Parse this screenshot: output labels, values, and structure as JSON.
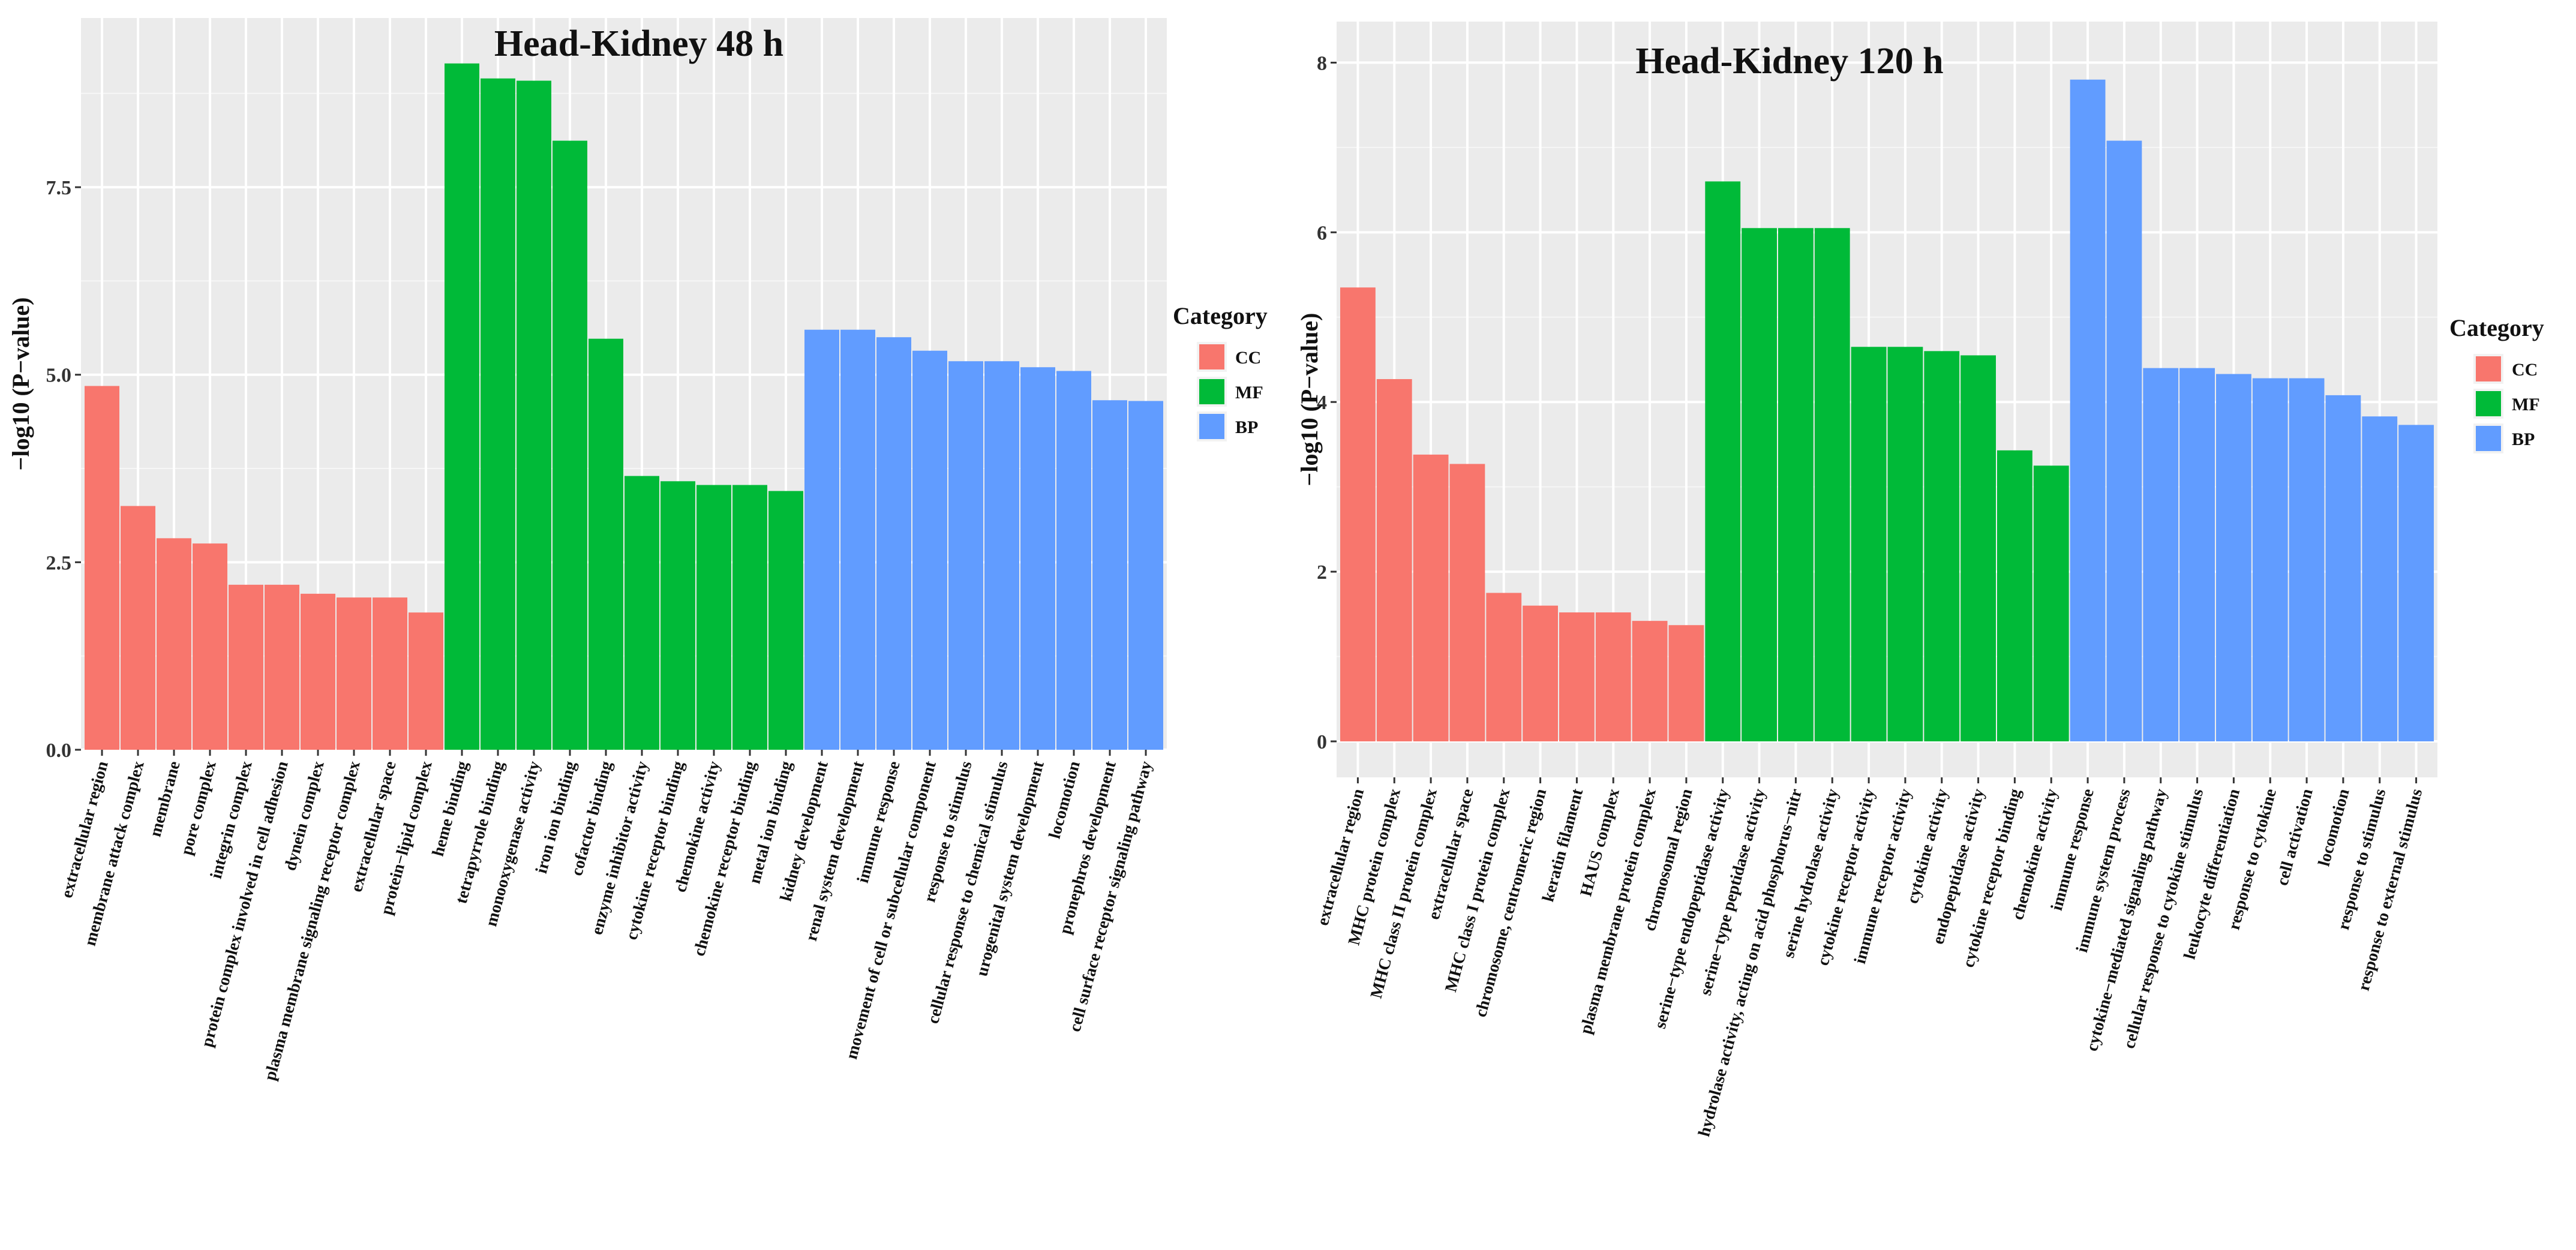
{
  "chart_data": [
    {
      "type": "bar",
      "title": "Head-Kidney 48 h",
      "ylabel": "−log10 (P−value)",
      "ylim": [
        0,
        9.5
      ],
      "yticks": [
        "0.0",
        "2.5",
        "5.0",
        "7.5"
      ],
      "grid": true,
      "legend": {
        "title": "Category",
        "placement": "right",
        "entries": [
          {
            "name": "CC",
            "color": "#F8766D"
          },
          {
            "name": "MF",
            "color": "#00BA38"
          },
          {
            "name": "BP",
            "color": "#619CFF"
          }
        ]
      },
      "categories": [
        "extracellular region",
        "membrane attack complex",
        "membrane",
        "pore complex",
        "integrin complex",
        "protein complex involved in cell adhesion",
        "dynein complex",
        "plasma membrane signaling receptor complex",
        "extracellular space",
        "protein−lipid complex",
        "heme binding",
        "tetrapyrrole binding",
        "monooxygenase activity",
        "iron ion binding",
        "cofactor binding",
        "enzyme inhibitor activity",
        "cytokine receptor binding",
        "chemokine activity",
        "chemokine receptor binding",
        "metal ion binding",
        "kidney development",
        "renal system development",
        "immune response",
        "movement of cell or subcellular component",
        "response to stimulus",
        "cellular response to chemical stimulus",
        "urogenital system development",
        "locomotion",
        "pronephros development",
        "cell surface receptor signaling pathway"
      ],
      "values": [
        4.85,
        3.25,
        2.82,
        2.75,
        2.2,
        2.2,
        2.08,
        2.03,
        2.03,
        1.83,
        9.15,
        8.95,
        8.92,
        8.12,
        5.48,
        3.65,
        3.58,
        3.53,
        3.53,
        3.45,
        5.6,
        5.6,
        5.5,
        5.32,
        5.18,
        5.18,
        5.1,
        5.05,
        4.66,
        4.65
      ],
      "groups": [
        "CC",
        "CC",
        "CC",
        "CC",
        "CC",
        "CC",
        "CC",
        "CC",
        "CC",
        "CC",
        "MF",
        "MF",
        "MF",
        "MF",
        "MF",
        "MF",
        "MF",
        "MF",
        "MF",
        "MF",
        "BP",
        "BP",
        "BP",
        "BP",
        "BP",
        "BP",
        "BP",
        "BP",
        "BP",
        "BP"
      ]
    },
    {
      "type": "bar",
      "title": "Head-Kidney 120 h",
      "ylabel": "−log10 (P−value)",
      "ylim": [
        0,
        8.3
      ],
      "yticks": [
        "0",
        "2",
        "4",
        "6",
        "8"
      ],
      "grid": true,
      "legend": {
        "title": "Category",
        "placement": "right",
        "entries": [
          {
            "name": "CC",
            "color": "#F8766D"
          },
          {
            "name": "MF",
            "color": "#00BA38"
          },
          {
            "name": "BP",
            "color": "#619CFF"
          }
        ]
      },
      "categories": [
        "extracellular region",
        "MHC protein complex",
        "MHC class II protein complex",
        "extracellular space",
        "MHC class I protein complex",
        "chromosome, centromeric region",
        "keratin filament",
        "HAUS complex",
        "plasma membrane protein complex",
        "chromosomal region",
        "serine−type endopeptidase activity",
        "serine−type peptidase activity",
        "hydrolase activity, acting on acid phosphorus−nitr",
        "serine hydrolase activity",
        "cytokine receptor activity",
        "immune receptor activity",
        "cytokine activity",
        "endopeptidase activity",
        "cytokine receptor binding",
        "chemokine activity",
        "immune response",
        "immune system process",
        "cytokine−mediated signaling pathway",
        "cellular response to cytokine stimulus",
        "leukocyte differentiation",
        "response to cytokine",
        "cell activation",
        "locomotion",
        "response to stimulus",
        "response to external stimulus"
      ],
      "values": [
        5.35,
        4.27,
        3.38,
        3.27,
        1.75,
        1.6,
        1.52,
        1.52,
        1.42,
        1.37,
        6.6,
        6.05,
        6.05,
        6.05,
        4.65,
        4.65,
        4.6,
        4.55,
        3.43,
        3.25,
        7.8,
        7.08,
        4.4,
        4.4,
        4.33,
        4.28,
        4.28,
        4.08,
        3.83,
        3.73
      ],
      "groups": [
        "CC",
        "CC",
        "CC",
        "CC",
        "CC",
        "CC",
        "CC",
        "CC",
        "CC",
        "CC",
        "MF",
        "MF",
        "MF",
        "MF",
        "MF",
        "MF",
        "MF",
        "MF",
        "MF",
        "MF",
        "BP",
        "BP",
        "BP",
        "BP",
        "BP",
        "BP",
        "BP",
        "BP",
        "BP",
        "BP"
      ]
    }
  ]
}
